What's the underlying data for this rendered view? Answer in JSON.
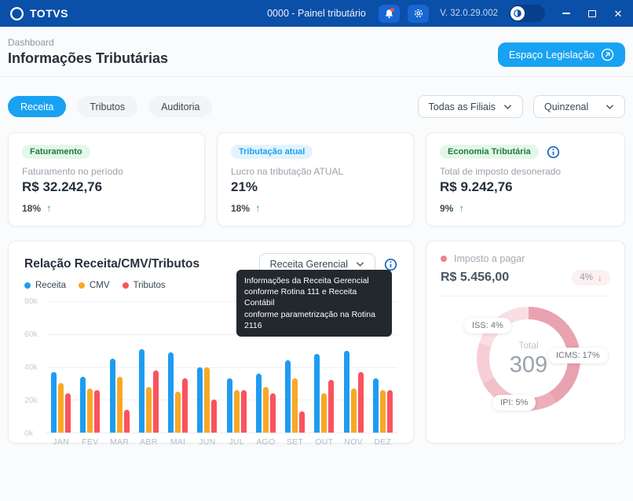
{
  "topbar": {
    "logo_text": "TOTVS",
    "window_title": "0000 - Painel tributário",
    "version": "V. 32.0.29.002"
  },
  "header": {
    "breadcrumb": "Dashboard",
    "page_title": "Informações Tributárias",
    "action_label": "Espaço Legislação"
  },
  "tabs": [
    {
      "label": "Receita",
      "active": true
    },
    {
      "label": "Tributos",
      "active": false
    },
    {
      "label": "Auditoria",
      "active": false
    }
  ],
  "filters": {
    "branches": "Todas as Filiais",
    "period": "Quinzenal"
  },
  "kpi_cards": [
    {
      "badge": "Faturamento",
      "badge_color": "green",
      "label": "Faturamento no período",
      "value": "R$ 32.242,76",
      "delta": "18%",
      "trend": "up"
    },
    {
      "badge": "Tributação atual",
      "badge_color": "blue",
      "label": "Lucro na tributação ATUAL",
      "value": "21%",
      "delta": "18%",
      "trend": "up"
    },
    {
      "badge": "Economia Tributária",
      "badge_color": "green",
      "has_info": true,
      "label": "Total de imposto desonerado",
      "value": "R$ 9.242,76",
      "delta": "9%",
      "trend": "up"
    }
  ],
  "revenue_chart": {
    "title": "Relação Receita/CMV/Tributos",
    "dropdown_value": "Receita Gerencial",
    "tooltip_lines": [
      "Informações da Receita Gerencial",
      "conforme Rotina 111 e Receita Contábil",
      "conforme parametrização na Rotina 2116"
    ]
  },
  "chart_data": [
    {
      "type": "bar",
      "title": "Relação Receita/CMV/Tributos",
      "categories": [
        "JAN",
        "FEV",
        "MAR",
        "ABR",
        "MAI",
        "JUN",
        "JUL",
        "AGO",
        "SET",
        "OUT",
        "NOV",
        "DEZ"
      ],
      "series": [
        {
          "name": "Receita",
          "color": "#1e9cf0",
          "values": [
            37,
            34,
            45,
            51,
            49,
            40,
            33,
            36,
            44,
            48,
            50,
            33
          ]
        },
        {
          "name": "CMV",
          "color": "#f9a825",
          "values": [
            30,
            27,
            34,
            28,
            25,
            40,
            26,
            28,
            33,
            24,
            27,
            26
          ]
        },
        {
          "name": "Tributos",
          "color": "#f9535f",
          "values": [
            24,
            26,
            14,
            38,
            33,
            20,
            26,
            24,
            13,
            32,
            37,
            26
          ]
        }
      ],
      "unit": "thousands",
      "ylim": [
        0,
        80
      ],
      "yticks": [
        "80k",
        "60k",
        "40k",
        "20k",
        "0k"
      ],
      "grid": true,
      "legend_position": "top-left"
    },
    {
      "type": "donut",
      "center_label": "Total",
      "center_value": "309",
      "slices": [
        {
          "name": "ISS",
          "pct": 4,
          "label": "ISS: 4%"
        },
        {
          "name": "ICMS",
          "pct": 17,
          "label": "ICMS: 17%"
        },
        {
          "name": "IPI",
          "pct": 5,
          "label": "IPI: 5%"
        }
      ],
      "arcs": [
        {
          "color": "#e9a2af",
          "from": 0,
          "to": 41
        },
        {
          "color": "#edafba",
          "from": 41,
          "to": 54
        },
        {
          "color": "#f2c0c9",
          "from": 54,
          "to": 67
        },
        {
          "color": "#f6cfd6",
          "from": 67,
          "to": 80
        },
        {
          "color": "#f9dfe3",
          "from": 80,
          "to": 100
        }
      ]
    }
  ],
  "tax_card": {
    "label": "Imposto a pagar",
    "value": "R$ 5.456,00",
    "delta": "4%",
    "trend": "down"
  },
  "colors": {
    "topbar": "#0a4fa8",
    "accent": "#18a2f2",
    "positive": "#2fb566",
    "negative": "#f0818f"
  }
}
